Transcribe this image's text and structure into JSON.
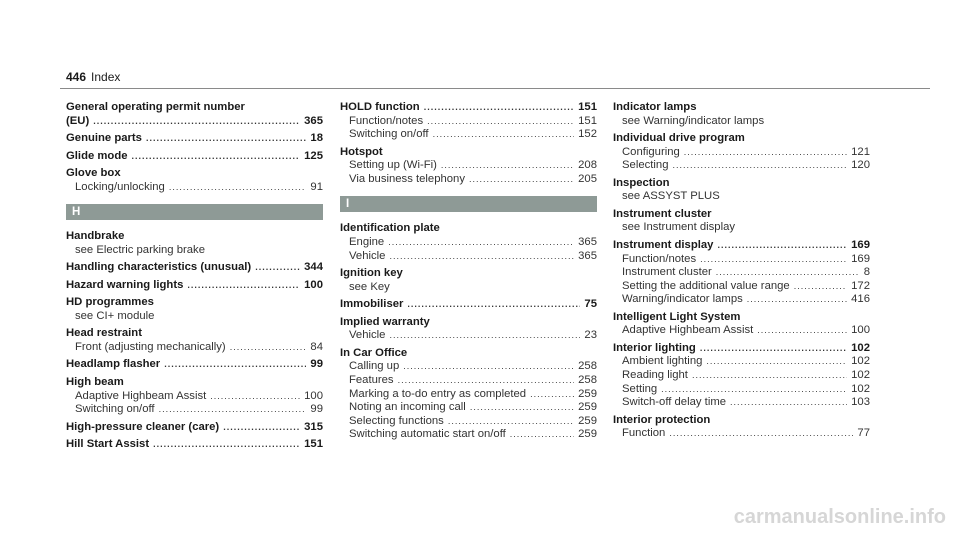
{
  "header": {
    "page_number": "446",
    "section": "Index"
  },
  "columns": [
    [
      {
        "title": "General operating permit number (EU)",
        "title_lines": [
          "General operating permit number",
          "(EU)"
        ],
        "page": "365"
      },
      {
        "title": "Genuine parts",
        "page": "18"
      },
      {
        "title": "Glide mode",
        "page": "125"
      },
      {
        "title": "Glove box",
        "subs": [
          {
            "text": "Locking/unlocking",
            "page": "91"
          }
        ]
      },
      {
        "letter": "H"
      },
      {
        "title": "Handbrake",
        "subs": [
          {
            "text": "see Electric parking brake"
          }
        ]
      },
      {
        "title": "Handling characteristics (unusual)",
        "page": "344"
      },
      {
        "title": "Hazard warning lights",
        "page": "100"
      },
      {
        "title": "HD programmes",
        "subs": [
          {
            "text": "see CI+ module"
          }
        ]
      },
      {
        "title": "Head restraint",
        "subs": [
          {
            "text": "Front (adjusting mechanically)",
            "page": "84"
          }
        ]
      },
      {
        "title": "Headlamp flasher",
        "page": "99"
      },
      {
        "title": "High beam",
        "subs": [
          {
            "text": "Adaptive Highbeam Assist",
            "page": "100"
          },
          {
            "text": "Switching on/off",
            "page": "99"
          }
        ]
      },
      {
        "title": "High-pressure cleaner (care)",
        "page": "315"
      },
      {
        "title": "Hill Start Assist",
        "page": "151"
      }
    ],
    [
      {
        "title": "HOLD function",
        "page": "151",
        "subs": [
          {
            "text": "Function/notes",
            "page": "151"
          },
          {
            "text": "Switching on/off",
            "page": "152"
          }
        ]
      },
      {
        "title": "Hotspot",
        "subs": [
          {
            "text": "Setting up (Wi-Fi)",
            "page": "208"
          },
          {
            "text": "Via business telephony",
            "page": "205"
          }
        ]
      },
      {
        "letter": "I"
      },
      {
        "title": "Identification plate",
        "subs": [
          {
            "text": "Engine",
            "page": "365"
          },
          {
            "text": "Vehicle",
            "page": "365"
          }
        ]
      },
      {
        "title": "Ignition key",
        "subs": [
          {
            "text": "see Key"
          }
        ]
      },
      {
        "title": "Immobiliser",
        "page": "75"
      },
      {
        "title": "Implied warranty",
        "subs": [
          {
            "text": "Vehicle",
            "page": "23"
          }
        ]
      },
      {
        "title": "In Car Office",
        "subs": [
          {
            "text": "Calling up",
            "page": "258"
          },
          {
            "text": "Features",
            "page": "258"
          },
          {
            "text": "Marking a to-do entry as completed",
            "page": "259"
          },
          {
            "text": "Noting an incoming call",
            "page": "259"
          },
          {
            "text": "Selecting functions",
            "page": "259"
          },
          {
            "text": "Switching automatic start on/off",
            "page": "259"
          }
        ]
      }
    ],
    [
      {
        "title": "Indicator lamps",
        "subs": [
          {
            "text": "see Warning/indicator lamps"
          }
        ]
      },
      {
        "title": "Individual drive program",
        "subs": [
          {
            "text": "Configuring",
            "page": "121"
          },
          {
            "text": "Selecting",
            "page": "120"
          }
        ]
      },
      {
        "title": "Inspection",
        "subs": [
          {
            "text": "see ASSYST PLUS"
          }
        ]
      },
      {
        "title": "Instrument cluster",
        "subs": [
          {
            "text": "see Instrument display"
          }
        ]
      },
      {
        "title": "Instrument display",
        "page": "169",
        "subs": [
          {
            "text": "Function/notes",
            "page": "169"
          },
          {
            "text": "Instrument cluster",
            "page": "8"
          },
          {
            "text": "Setting the additional value range",
            "page": "172"
          },
          {
            "text": "Warning/indicator lamps",
            "page": "416"
          }
        ]
      },
      {
        "title": "Intelligent Light System",
        "subs": [
          {
            "text": "Adaptive Highbeam Assist",
            "page": "100"
          }
        ]
      },
      {
        "title": "Interior lighting",
        "page": "102",
        "subs": [
          {
            "text": "Ambient lighting",
            "page": "102"
          },
          {
            "text": "Reading light",
            "page": "102"
          },
          {
            "text": "Setting",
            "page": "102"
          },
          {
            "text": "Switch-off delay time",
            "page": "103"
          }
        ]
      },
      {
        "title": "Interior protection",
        "subs": [
          {
            "text": "Function",
            "page": "77"
          }
        ]
      }
    ]
  ],
  "watermark": "carmanualsonline.info"
}
